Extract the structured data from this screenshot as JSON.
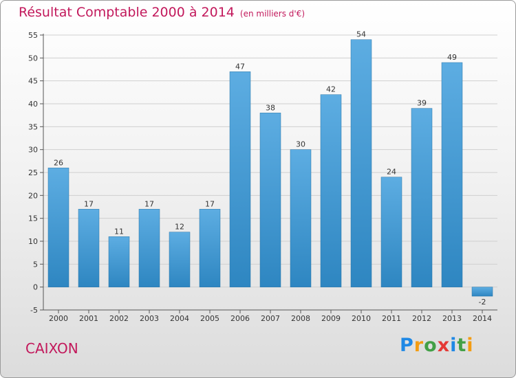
{
  "header": {
    "title": "Résultat Comptable 2000 à 2014",
    "unit": "(en milliers d'€)"
  },
  "footer": {
    "place": "CAIXON",
    "logo": [
      "P",
      "r",
      "o",
      "x",
      "i",
      "t",
      "i"
    ]
  },
  "colors": {
    "title": "#c2185b",
    "bar_top": "#5dade2",
    "bar_bottom": "#2e86c1",
    "bar_negative_top": "#5dade2",
    "bar_negative_bottom": "#2e86c1",
    "grid": "#cfcfcf"
  },
  "chart_data": {
    "type": "bar",
    "title": "Résultat Comptable 2000 à 2014",
    "subtitle": "(en milliers d'€)",
    "xlabel": "",
    "ylabel": "",
    "categories": [
      "2000",
      "2001",
      "2002",
      "2003",
      "2004",
      "2005",
      "2006",
      "2007",
      "2008",
      "2009",
      "2010",
      "2011",
      "2012",
      "2013",
      "2014"
    ],
    "values": [
      26,
      17,
      11,
      17,
      12,
      17,
      47,
      38,
      30,
      42,
      54,
      24,
      39,
      49,
      -2
    ],
    "ylim": [
      -5,
      55
    ],
    "yticks": [
      -5,
      0,
      5,
      10,
      15,
      20,
      25,
      30,
      35,
      40,
      45,
      50,
      55
    ],
    "grid": true,
    "legend": "none"
  }
}
